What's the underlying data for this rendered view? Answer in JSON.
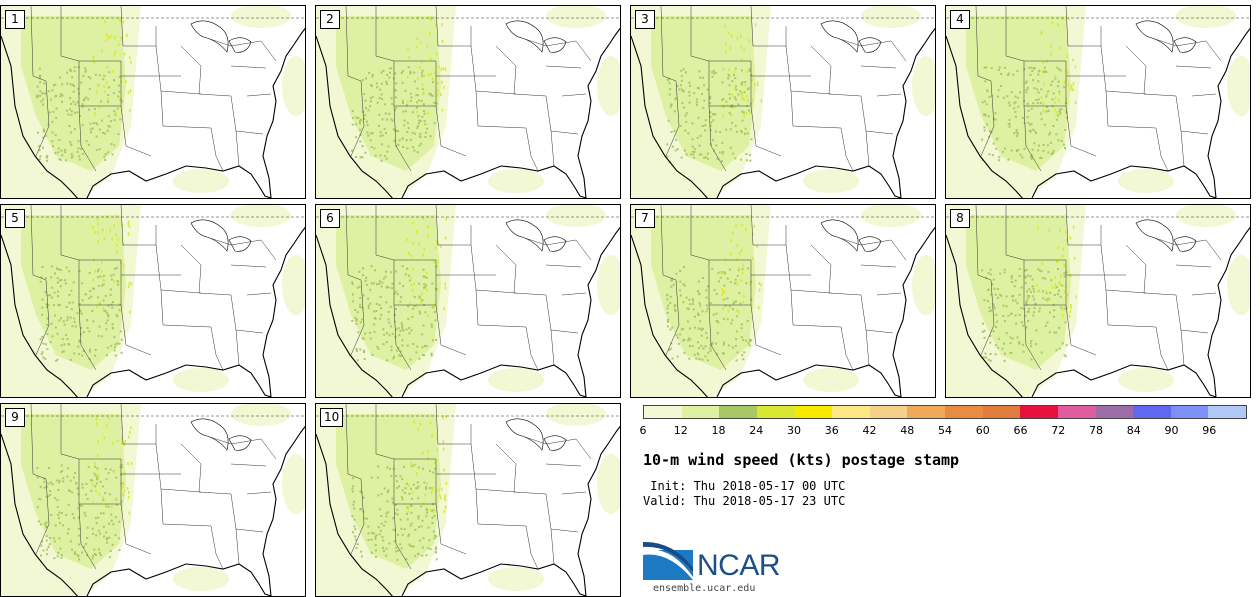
{
  "panels": [
    {
      "label": "1"
    },
    {
      "label": "2"
    },
    {
      "label": "3"
    },
    {
      "label": "4"
    },
    {
      "label": "5"
    },
    {
      "label": "6"
    },
    {
      "label": "7"
    },
    {
      "label": "8"
    },
    {
      "label": "9"
    },
    {
      "label": "10"
    }
  ],
  "colorbar": {
    "ticks": [
      "6",
      "12",
      "18",
      "24",
      "30",
      "36",
      "42",
      "48",
      "54",
      "60",
      "66",
      "72",
      "78",
      "84",
      "90",
      "96"
    ],
    "colors": [
      "#f2f7d4",
      "#def0a2",
      "#a8c866",
      "#d8e832",
      "#f8e800",
      "#fde886",
      "#f5d08a",
      "#eeaa5a",
      "#e88c44",
      "#e07c3c",
      "#e8103c",
      "#e05c9c",
      "#9c6ca8",
      "#6068f0",
      "#7c90f8",
      "#b0c8f8"
    ]
  },
  "title": "10-m wind speed (kts) postage stamp",
  "init": " Init: Thu 2018-05-17 00 UTC",
  "valid": "Valid: Thu 2018-05-17 23 UTC",
  "logo": {
    "text": "NCAR",
    "site": "ensemble.ucar.edu"
  }
}
